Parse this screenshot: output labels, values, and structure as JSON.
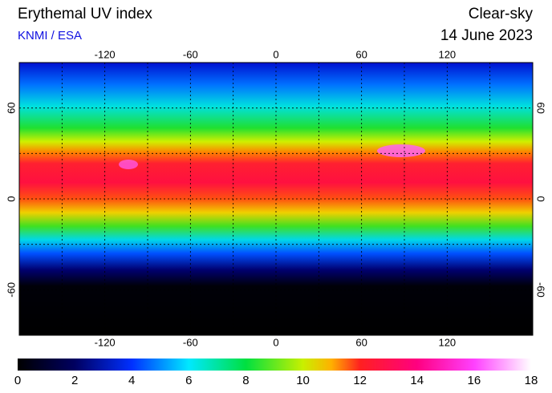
{
  "header": {
    "title": "Erythemal UV index",
    "source": "KNMI / ESA",
    "condition": "Clear-sky",
    "date": "14 June 2023"
  },
  "map": {
    "lon_range": [
      -180,
      180
    ],
    "lat_range": [
      -90,
      90
    ],
    "lon_ticks": [
      -120,
      -60,
      0,
      60,
      120
    ],
    "lat_ticks": [
      -60,
      0,
      60
    ],
    "lon_grid": [
      -150,
      -120,
      -90,
      -60,
      -30,
      0,
      30,
      60,
      90,
      120,
      150
    ],
    "lat_grid": [
      -60,
      -30,
      0,
      30,
      60
    ]
  },
  "colorbar": {
    "range": [
      0,
      18
    ],
    "ticks": [
      0,
      2,
      4,
      6,
      8,
      10,
      12,
      14,
      16,
      18
    ],
    "stops": [
      {
        "value": 0,
        "color": "#000000"
      },
      {
        "value": 2,
        "color": "#000060"
      },
      {
        "value": 4,
        "color": "#0030ff"
      },
      {
        "value": 6,
        "color": "#00e8ff"
      },
      {
        "value": 8,
        "color": "#00e040"
      },
      {
        "value": 10,
        "color": "#c8f000"
      },
      {
        "value": 11,
        "color": "#ffb000"
      },
      {
        "value": 12,
        "color": "#ff2020"
      },
      {
        "value": 14,
        "color": "#ff0080"
      },
      {
        "value": 16,
        "color": "#ff40ff"
      },
      {
        "value": 18,
        "color": "#ffffff"
      }
    ]
  }
}
